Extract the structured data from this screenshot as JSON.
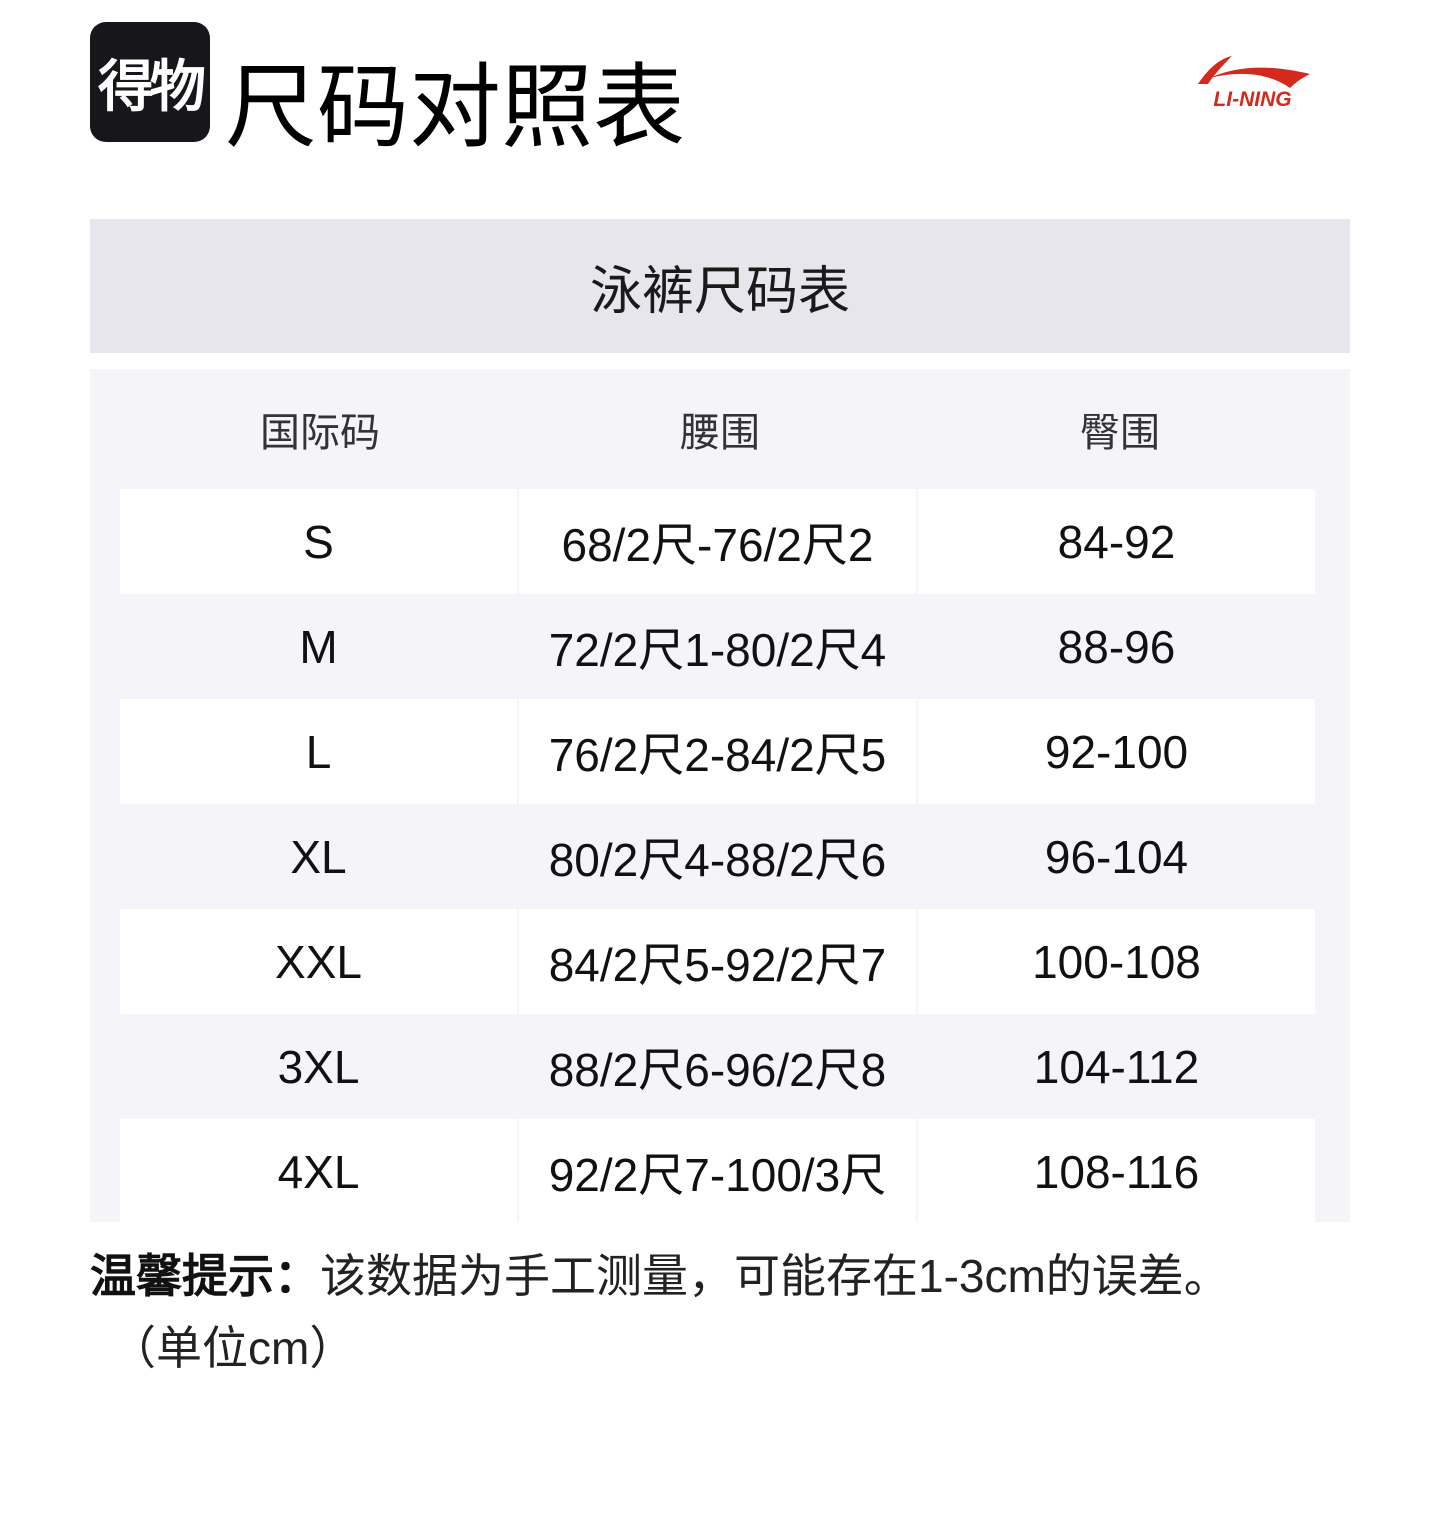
{
  "header": {
    "badge_text": "得物",
    "title": "尺码对照表",
    "brand_logo_text": "LI-NING",
    "brand_color": "#d42a1e"
  },
  "table": {
    "title": "泳裤尺码表",
    "columns": [
      "国际码",
      "腰围",
      "臀围"
    ],
    "rows": [
      [
        "S",
        "68/2尺-76/2尺2",
        "84-92"
      ],
      [
        "M",
        "72/2尺1-80/2尺4",
        "88-96"
      ],
      [
        "L",
        "76/2尺2-84/2尺5",
        "92-100"
      ],
      [
        "XL",
        "80/2尺4-88/2尺6",
        "96-104"
      ],
      [
        "XXL",
        "84/2尺5-92/2尺7",
        "100-108"
      ],
      [
        "3XL",
        "88/2尺6-96/2尺8",
        "104-112"
      ],
      [
        "4XL",
        "92/2尺7-100/3尺",
        "108-116"
      ]
    ]
  },
  "note": {
    "label": "温馨提示：",
    "text": "该数据为手工测量，可能存在1-3cm的误差。",
    "unit": "（单位cm）"
  }
}
